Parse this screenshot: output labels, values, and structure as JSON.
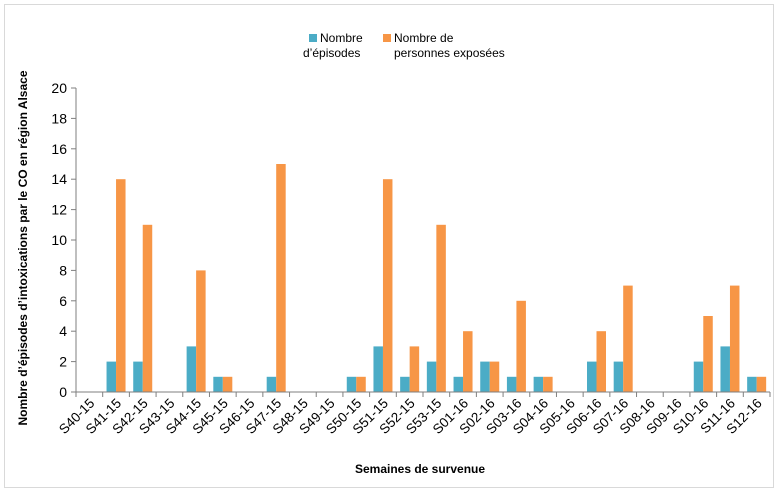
{
  "chart_data": {
    "type": "bar",
    "title": "",
    "xlabel": "Semaines de survenue",
    "ylabel": "Nombre d’épisodes d’intoxications par le CO en région Alsace",
    "ylim": [
      0,
      20
    ],
    "yticks": [
      0,
      2,
      4,
      6,
      8,
      10,
      12,
      14,
      16,
      18,
      20
    ],
    "grid": false,
    "legend_position": "top-center",
    "categories": [
      "S40-15",
      "S41-15",
      "S42-15",
      "S43-15",
      "S44-15",
      "S45-15",
      "S46-15",
      "S47-15",
      "S48-15",
      "S49-15",
      "S50-15",
      "S51-15",
      "S52-15",
      "S53-15",
      "S01-16",
      "S02-16",
      "S03-16",
      "S04-16",
      "S05-16",
      "S06-16",
      "S07-16",
      "S08-16",
      "S09-16",
      "S10-16",
      "S11-16",
      "S12-16"
    ],
    "series": [
      {
        "name": [
          "Nombre",
          "d’épisodes"
        ],
        "color": "#4bacc6",
        "values": [
          0,
          2,
          2,
          0,
          3,
          1,
          0,
          1,
          0,
          0,
          1,
          3,
          1,
          2,
          1,
          2,
          1,
          1,
          0,
          2,
          2,
          0,
          0,
          2,
          3,
          1
        ]
      },
      {
        "name": [
          "Nombre de",
          "personnes exposées"
        ],
        "color": "#f79646",
        "values": [
          0,
          14,
          11,
          0,
          8,
          1,
          0,
          15,
          0,
          0,
          1,
          14,
          3,
          11,
          4,
          2,
          6,
          1,
          0,
          4,
          7,
          0,
          0,
          5,
          7,
          1
        ]
      }
    ]
  }
}
